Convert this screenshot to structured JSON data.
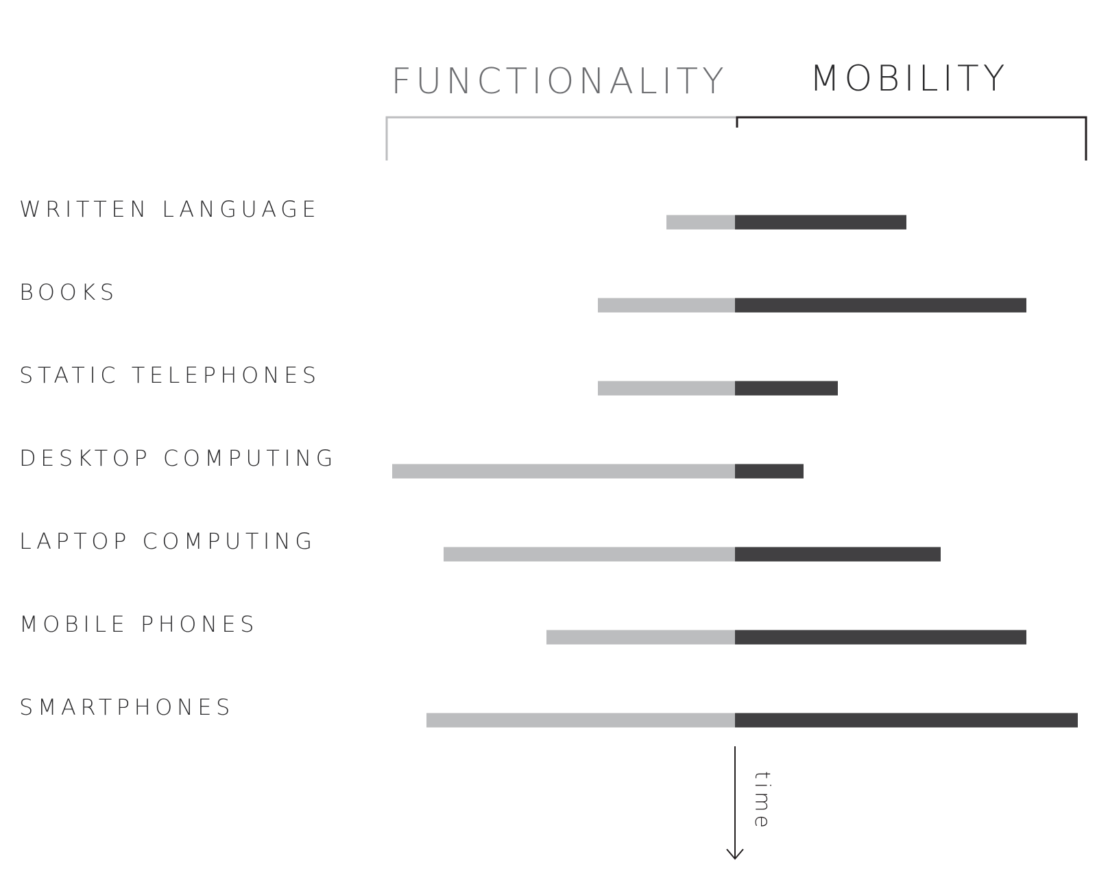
{
  "chart_data": {
    "type": "bar",
    "subtype": "diverging-horizontal",
    "left_header": "FUNCTIONALITY",
    "right_header": "MOBILITY",
    "time_label": "time",
    "categories": [
      "WRITTEN LANGUAGE",
      "BOOKS",
      "STATIC TELEPHONES",
      "DESKTOP COMPUTING",
      "LAPTOP COMPUTING",
      "MOBILE PHONES",
      "SMARTPHONES"
    ],
    "series": [
      {
        "name": "FUNCTIONALITY",
        "values": [
          0.2,
          0.4,
          0.4,
          1.0,
          0.85,
          0.55,
          0.9
        ],
        "color": "#bcbdbf"
      },
      {
        "name": "MOBILITY",
        "values": [
          0.5,
          0.85,
          0.3,
          0.2,
          0.6,
          0.85,
          1.0
        ],
        "color": "#414042"
      }
    ],
    "xlim": [
      0,
      1
    ],
    "grid": false,
    "legend": "none"
  }
}
